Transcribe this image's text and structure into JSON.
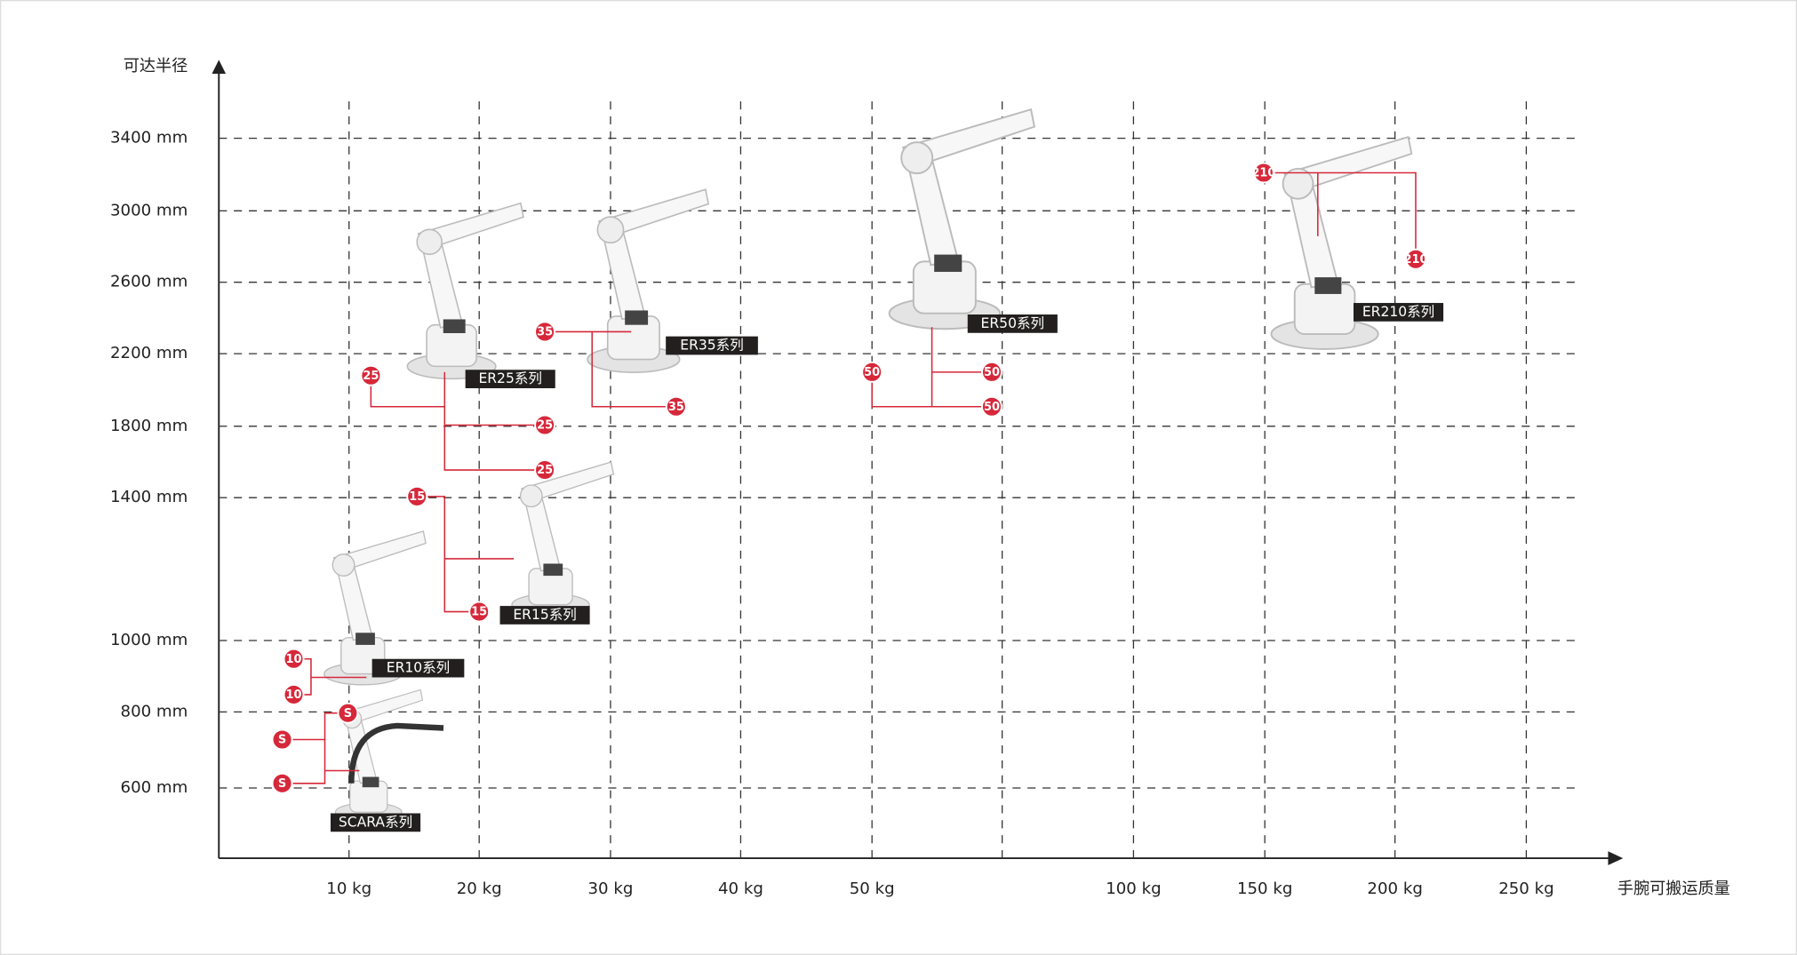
{
  "axes": {
    "y_title": "可达半径",
    "x_title": "手腕可搬运质量",
    "y_labels": [
      "3400 mm",
      "3000 mm",
      "2600 mm",
      "2200 mm",
      "1800 mm",
      "1400 mm",
      "1000 mm",
      "800 mm",
      "600 mm"
    ],
    "x_labels": [
      "10 kg",
      "20 kg",
      "30 kg",
      "40 kg",
      "50 kg",
      "100 kg",
      "150 kg",
      "200 kg",
      "250 kg"
    ]
  },
  "series": [
    {
      "label": "SCARA系列",
      "badge": "S"
    },
    {
      "label": "ER10系列",
      "badge": "10"
    },
    {
      "label": "ER15系列",
      "badge": "15"
    },
    {
      "label": "ER25系列",
      "badge": "25"
    },
    {
      "label": "ER35系列",
      "badge": "35"
    },
    {
      "label": "ER50系列",
      "badge": "50"
    },
    {
      "label": "ER210系列",
      "badge": "210"
    }
  ]
}
